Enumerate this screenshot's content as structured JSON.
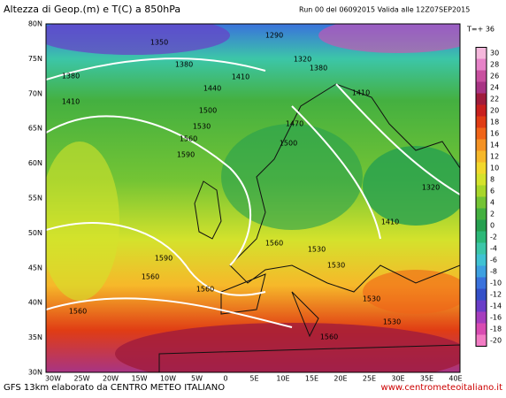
{
  "header": {
    "title": "Altezza di Geop.(m) e T(C) a 850hPa",
    "run": "Run 00 del 06092015  Valida alle 12Z07SEP2015",
    "step": "T=+ 36"
  },
  "map": {
    "lat_labels": [
      "80N",
      "75N",
      "70N",
      "65N",
      "60N",
      "55N",
      "50N",
      "45N",
      "40N",
      "35N",
      "30N"
    ],
    "lon_labels": [
      "30W",
      "25W",
      "20W",
      "15W",
      "10W",
      "5W",
      "0",
      "5E",
      "10E",
      "15E",
      "20E",
      "25E",
      "30E",
      "35E",
      "40E"
    ],
    "contour_labels": [
      1350,
      1290,
      1320,
      1380,
      1380,
      1380,
      1410,
      1440,
      1410,
      1500,
      1410,
      1530,
      1560,
      1590,
      1470,
      1500,
      1320,
      1410,
      1560,
      1530,
      1590,
      1560,
      1560,
      1530,
      1530,
      1560,
      1530,
      1560
    ]
  },
  "colorbar": {
    "ticks": [
      30,
      28,
      26,
      24,
      22,
      20,
      18,
      16,
      14,
      12,
      10,
      8,
      6,
      4,
      2,
      0,
      -2,
      -4,
      -6,
      -8,
      -10,
      -12,
      -14,
      -16,
      -18,
      -20
    ],
    "colors": [
      "#f5b8dc",
      "#e683c8",
      "#c8509f",
      "#a83484",
      "#a01c3c",
      "#c8201e",
      "#e03c14",
      "#f06418",
      "#f49224",
      "#f6b82a",
      "#f2d82c",
      "#d4e22c",
      "#a8d62a",
      "#74c434",
      "#44b040",
      "#26a050",
      "#2cb878",
      "#3cc6a8",
      "#40c2d2",
      "#3ea0e0",
      "#3a72dc",
      "#3450c8",
      "#6a3ec8",
      "#a63ebe",
      "#d84cb2",
      "#f27cc4"
    ]
  },
  "footer": {
    "model": "GFS 13km elaborato da CENTRO METEO ITALIANO",
    "site": "www.centrometeoitaliano.it"
  }
}
